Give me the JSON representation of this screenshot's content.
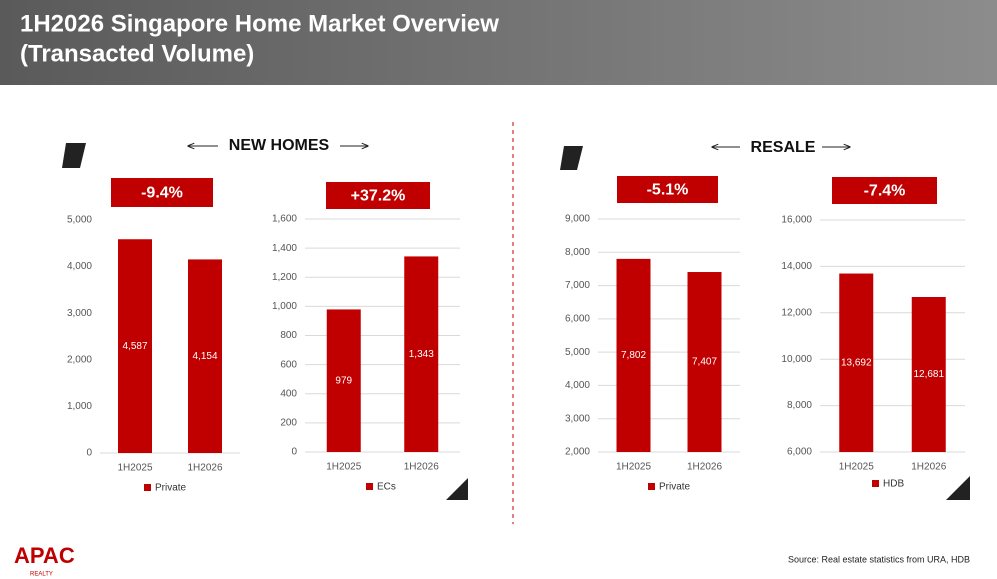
{
  "title_lines": [
    "1H2026 Singapore Home Market Overview",
    "(Transacted Volume)"
  ],
  "sections": [
    "NEW HOMES",
    "RESALE"
  ],
  "source": "Source: Real estate statistics from URA, HDB",
  "logo": "APAC",
  "logo_sub": "REALTY",
  "chart_data": [
    {
      "type": "bar",
      "change": "-9.4%",
      "categories": [
        "1H2025",
        "1H2026"
      ],
      "series": [
        {
          "name": "Private",
          "color": "#c00000",
          "values": [
            4587,
            4154
          ],
          "value_labels": [
            "4,587",
            "4,154"
          ]
        }
      ],
      "ylim": [
        0,
        5000
      ],
      "yticks": [
        0,
        {
          "value": 1000,
          "label": "1,000"
        },
        {
          "value": 2000,
          "label": "2,000"
        },
        {
          "value": 3000,
          "label": "3,000"
        },
        {
          "value": 4000,
          "label": "4,000"
        },
        {
          "value": 5000,
          "label": "5,000"
        }
      ],
      "grid": false
    },
    {
      "type": "bar",
      "change": "+37.2%",
      "categories": [
        "1H2025",
        "1H2026"
      ],
      "series": [
        {
          "name": "ECs",
          "color": "#c00000",
          "values": [
            979,
            1343
          ],
          "value_labels": [
            "979",
            "1,343"
          ]
        }
      ],
      "ylim": [
        0,
        1600
      ],
      "yticks": [
        0,
        200,
        400,
        600,
        800,
        {
          "value": 1000,
          "label": "1,000"
        },
        {
          "value": 1200,
          "label": "1,200"
        },
        {
          "value": 1400,
          "label": "1,400"
        },
        {
          "value": 1600,
          "label": "1,600"
        }
      ],
      "grid": true
    },
    {
      "type": "bar",
      "change": "-5.1%",
      "categories": [
        "1H2025",
        "1H2026"
      ],
      "series": [
        {
          "name": "Private",
          "color": "#c00000",
          "values": [
            7802,
            7407
          ],
          "value_labels": [
            "7,802",
            "7,407"
          ]
        }
      ],
      "ylim": [
        2000,
        9000
      ],
      "yticks": [
        {
          "value": 2000,
          "label": "2,000"
        },
        {
          "value": 3000,
          "label": "3,000"
        },
        {
          "value": 4000,
          "label": "4,000"
        },
        {
          "value": 5000,
          "label": "5,000"
        },
        {
          "value": 6000,
          "label": "6,000"
        },
        {
          "value": 7000,
          "label": "7,000"
        },
        {
          "value": 8000,
          "label": "8,000"
        },
        {
          "value": 9000,
          "label": "9,000"
        }
      ],
      "grid": true
    },
    {
      "type": "bar",
      "change": "-7.4%",
      "categories": [
        "1H2025",
        "1H2026"
      ],
      "series": [
        {
          "name": "HDB",
          "color": "#c00000",
          "values": [
            13692,
            12681
          ],
          "value_labels": [
            "13,692",
            "12,681"
          ]
        }
      ],
      "ylim": [
        6000,
        16000
      ],
      "yticks": [
        {
          "value": 6000,
          "label": "6,000"
        },
        {
          "value": 8000,
          "label": "8,000"
        },
        {
          "value": 10000,
          "label": "10,000"
        },
        {
          "value": 12000,
          "label": "12,000"
        },
        {
          "value": 14000,
          "label": "14,000"
        },
        {
          "value": 16000,
          "label": "16,000"
        }
      ],
      "grid": true
    }
  ]
}
